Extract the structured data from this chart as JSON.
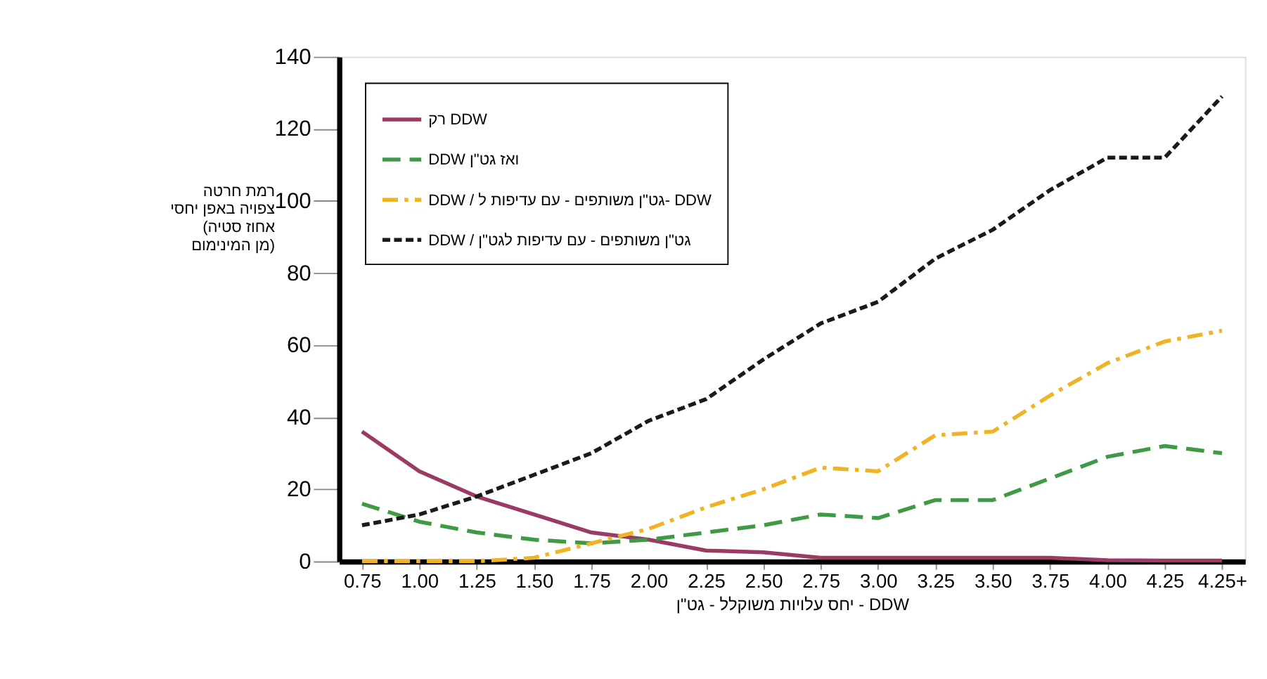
{
  "chart_data": {
    "type": "line",
    "xlabel": "יחס עלויות משוקלל - גט\"ן - DDW",
    "ylabel": "רמת חרטה\nצפויה באפן יחסי\n\n(אחוז סטיה\nמן המינימום)",
    "categories": [
      "0.75",
      "1.00",
      "1.25",
      "1.50",
      "1.75",
      "2.00",
      "2.25",
      "2.50",
      "2.75",
      "3.00",
      "3.25",
      "3.50",
      "3.75",
      "4.00",
      "4.25",
      "4.25+"
    ],
    "ylim": [
      0,
      140
    ],
    "yticks": [
      0,
      20,
      40,
      60,
      80,
      100,
      120,
      140
    ],
    "grid": false,
    "legend": "top left",
    "marker": "none",
    "series": [
      {
        "name": "רק DDW",
        "color": "#9b3a63",
        "line_style": "solid",
        "values": [
          36,
          25,
          18,
          13,
          8,
          6,
          3,
          2.5,
          1,
          1,
          1,
          1,
          1,
          0.3,
          0.2,
          0.2
        ]
      },
      {
        "name": "DDW ואז גט\"ן",
        "color": "#3f9a45",
        "line_style": "dashed",
        "values": [
          16,
          11,
          8,
          6,
          5,
          6,
          8,
          10,
          13,
          12,
          17,
          17,
          23,
          29,
          32,
          30
        ]
      },
      {
        "name": "DDW / גט\"ן משותפים - עם עדיפות ל- DDW",
        "color": "#f0b323",
        "line_style": "dashdot",
        "values": [
          0,
          0,
          0,
          1,
          5,
          9,
          15,
          20,
          26,
          25,
          35,
          36,
          46,
          55,
          61,
          64
        ]
      },
      {
        "name": "DDW / גט\"ן משותפים - עם עדיפות לגט\"ן",
        "color": "#1a1a1a",
        "line_style": "dotted",
        "values": [
          10,
          13,
          18,
          24,
          30,
          39,
          45,
          56,
          66,
          72,
          84,
          92,
          103,
          112,
          112,
          129
        ]
      }
    ]
  }
}
